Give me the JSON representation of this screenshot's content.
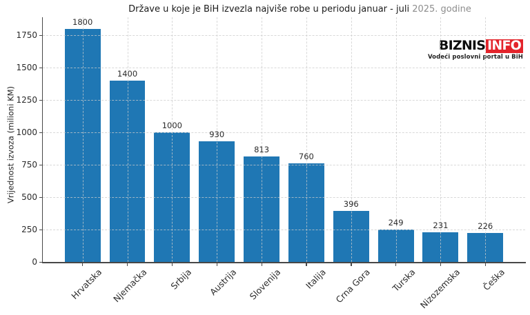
{
  "title": {
    "main": "Države u koje je BiH izvezla najviše robe u periodu januar - juli",
    "year": " 2025. godine"
  },
  "logo": {
    "part1": "BIZNIS",
    "part2": "INFO",
    "tagline": "Vodeći poslovni portal u BiH",
    "accent_color": "#e3242b"
  },
  "chart_data": {
    "type": "bar",
    "title": "Države u koje je BiH izvezla najviše robe u periodu januar - juli 2025. godine",
    "categories": [
      "Hrvatska",
      "Njemačka",
      "Srbija",
      "Austrija",
      "Slovenija",
      "Italija",
      "Crna Gora",
      "Turska",
      "Nizozemska",
      "Češka"
    ],
    "values": [
      1800,
      1400,
      1000,
      930,
      813,
      760,
      396,
      249,
      231,
      226
    ],
    "xlabel": "",
    "ylabel": "Vrijednost izvoza (milioni KM)",
    "ylim": [
      0,
      1890
    ],
    "yticks": [
      0,
      250,
      500,
      750,
      1000,
      1250,
      1500,
      1750
    ],
    "bar_color": "#1f77b4",
    "grid": "dashed, horizontal and vertical, drawn above bars",
    "x_tick_rotation": 45,
    "legend": "none"
  }
}
